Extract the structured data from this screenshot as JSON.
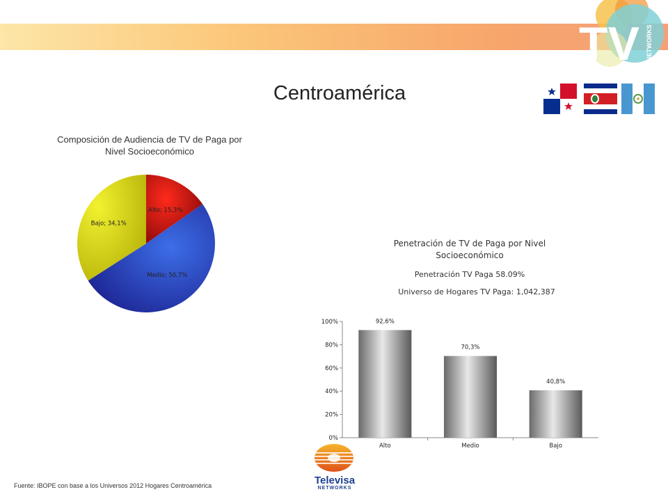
{
  "header": {
    "title": "Centroamérica",
    "logo_text": "TV",
    "logo_sub": "NETWORKS"
  },
  "flags": [
    "panama-flag-icon",
    "costa-rica-flag-icon",
    "guatemala-flag-icon"
  ],
  "chart_data": [
    {
      "type": "pie",
      "title": "Composición de Audiencia de TV  de Paga por Nivel Socioeconómico",
      "labels": [
        "Alto; 15,3%",
        "Medio; 50,7%",
        "Bajo; 34,1%"
      ],
      "categories": [
        "Alto",
        "Medio",
        "Bajo"
      ],
      "values": [
        15.3,
        50.7,
        34.1
      ],
      "colors": [
        "#d11a14",
        "#2a3fbf",
        "#dada14"
      ]
    },
    {
      "type": "bar",
      "title": "Penetración de TV de Paga por Nivel Socioeconómico",
      "subtitles": [
        "Penetración TV Paga 58.09%",
        "Universo de Hogares TV Paga: 1,042,387"
      ],
      "categories": [
        "Alto",
        "Medio",
        "Bajo"
      ],
      "values": [
        92.6,
        70.3,
        40.8
      ],
      "value_labels": [
        "92,6%",
        "70,3%",
        "40,8%"
      ],
      "ylim": [
        0,
        100
      ],
      "yticks": [
        "0%",
        "20%",
        "40%",
        "60%",
        "80%",
        "100%"
      ],
      "grid": false
    }
  ],
  "footer": {
    "source": "Fuente: IBOPE con base a los Universos 2012 Hogares Centroamérica",
    "brand": "Televisa",
    "brand_sub": "NETWORKS"
  }
}
